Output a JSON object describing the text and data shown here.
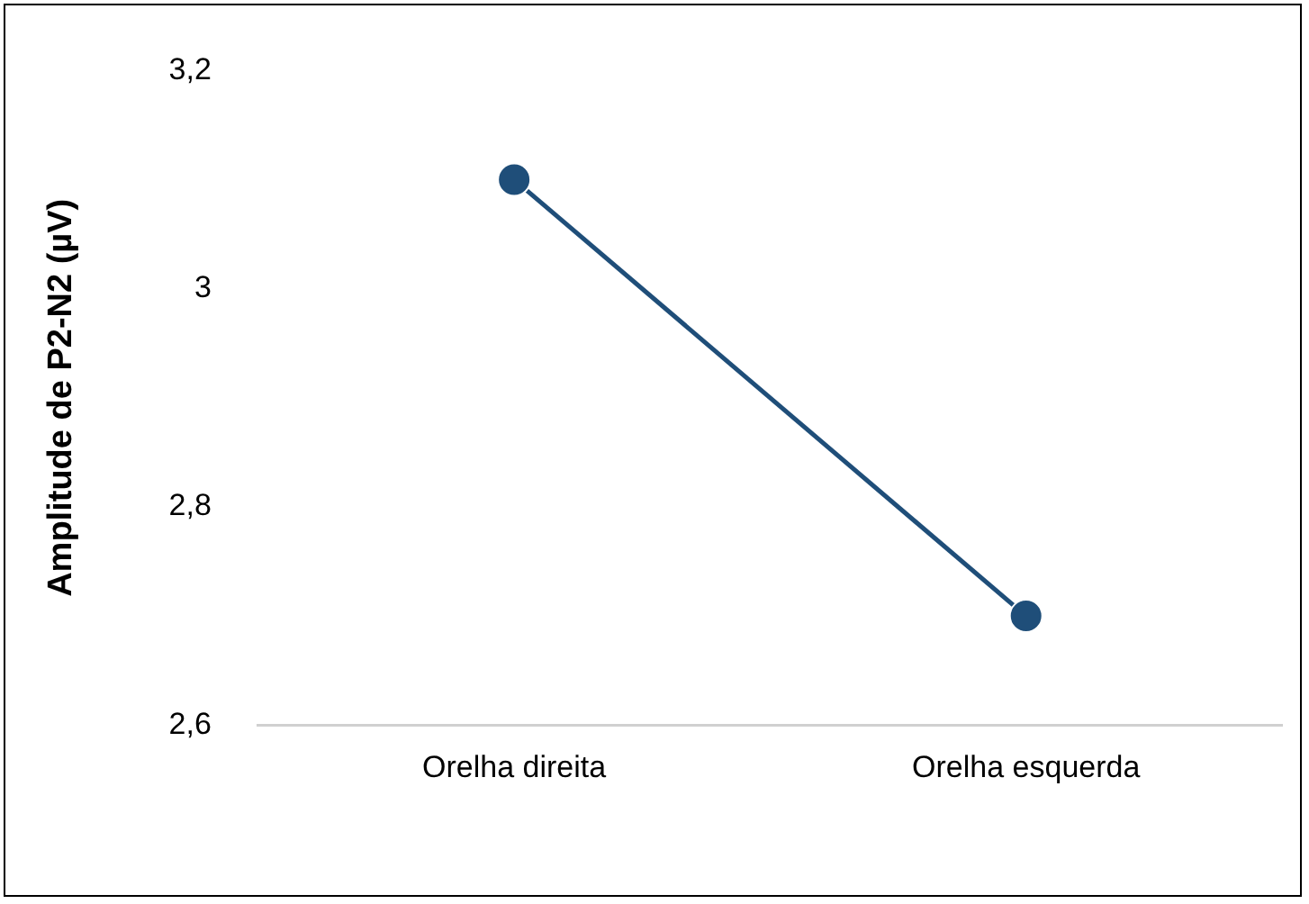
{
  "chart_data": {
    "type": "line",
    "ylabel": "Amplitude de P2-N2 (µV)",
    "categories": [
      "Orelha direita",
      "Orelha esquerda"
    ],
    "series": [
      {
        "color": "#1f4e79",
        "values": [
          3.1,
          2.7
        ]
      }
    ],
    "ylim": [
      2.6,
      3.2
    ],
    "yticks": [
      {
        "value": 2.6,
        "label": "2,6"
      },
      {
        "value": 2.8,
        "label": "2,8"
      },
      {
        "value": 3,
        "label": "3"
      },
      {
        "value": 3.2,
        "label": "3,2"
      }
    ],
    "grid": false,
    "legend": false,
    "marker": "circle",
    "line_style": "solid"
  }
}
